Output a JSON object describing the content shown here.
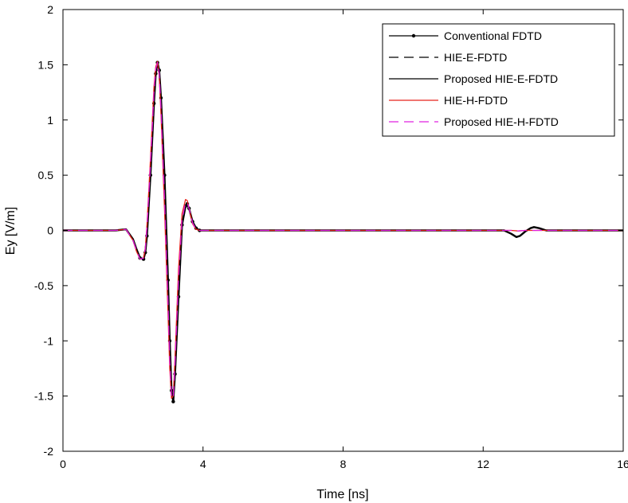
{
  "chart_data": {
    "type": "line",
    "title": "",
    "xlabel": "Time [ns]",
    "ylabel": "Ey [V/m]",
    "xlim": [
      0,
      16
    ],
    "ylim": [
      -2,
      2
    ],
    "xticks": [
      0,
      4,
      8,
      12,
      16
    ],
    "yticks": [
      -2,
      -1.5,
      -1,
      -0.5,
      0,
      0.5,
      1,
      1.5,
      2
    ],
    "grid": false,
    "legend_position": "top-right",
    "series": [
      {
        "name": "Conventional FDTD",
        "color": "#000000",
        "style": "solid-with-dots",
        "x": [
          0,
          1.5,
          1.8,
          2.0,
          2.1,
          2.2,
          2.3,
          2.35,
          2.4,
          2.5,
          2.6,
          2.65,
          2.7,
          2.75,
          2.8,
          2.9,
          3.0,
          3.05,
          3.1,
          3.15,
          3.2,
          3.3,
          3.4,
          3.5,
          3.55,
          3.6,
          3.7,
          3.8,
          3.9,
          4.0,
          8,
          12.4,
          12.6,
          12.8,
          12.95,
          13.05,
          13.2,
          13.35,
          13.45,
          13.6,
          13.8,
          14.2,
          16
        ],
        "y": [
          0,
          0.0,
          0.01,
          -0.08,
          -0.17,
          -0.25,
          -0.26,
          -0.2,
          -0.05,
          0.5,
          1.15,
          1.42,
          1.52,
          1.45,
          1.2,
          0.5,
          -0.45,
          -1.0,
          -1.45,
          -1.55,
          -1.3,
          -0.6,
          0.05,
          0.22,
          0.24,
          0.2,
          0.08,
          0.02,
          0.0,
          0.0,
          0.0,
          0.0,
          0.0,
          -0.03,
          -0.06,
          -0.05,
          -0.01,
          0.02,
          0.03,
          0.02,
          0.0,
          0.0,
          0.0
        ]
      },
      {
        "name": "HIE-E-FDTD",
        "color": "#000000",
        "style": "dashed",
        "x": [
          0,
          1.5,
          1.8,
          2.0,
          2.1,
          2.2,
          2.3,
          2.35,
          2.4,
          2.5,
          2.6,
          2.65,
          2.7,
          2.75,
          2.8,
          2.9,
          3.0,
          3.05,
          3.1,
          3.15,
          3.2,
          3.3,
          3.4,
          3.5,
          3.55,
          3.6,
          3.7,
          3.8,
          3.9,
          4.0,
          8,
          12.4,
          12.6,
          12.8,
          12.95,
          13.05,
          13.2,
          13.35,
          13.45,
          13.6,
          13.8,
          14.2,
          16
        ],
        "y": [
          0,
          0.0,
          0.01,
          -0.08,
          -0.17,
          -0.25,
          -0.26,
          -0.2,
          -0.05,
          0.5,
          1.15,
          1.42,
          1.52,
          1.45,
          1.2,
          0.5,
          -0.45,
          -1.0,
          -1.45,
          -1.55,
          -1.3,
          -0.6,
          0.05,
          0.22,
          0.24,
          0.2,
          0.08,
          0.02,
          0.0,
          0.0,
          0.0,
          0.0,
          0.0,
          -0.03,
          -0.06,
          -0.05,
          -0.01,
          0.02,
          0.03,
          0.02,
          0.0,
          0.0,
          0.0
        ]
      },
      {
        "name": "Proposed HIE-E-FDTD",
        "color": "#000000",
        "style": "solid",
        "x": [
          0,
          1.5,
          1.8,
          2.0,
          2.1,
          2.2,
          2.3,
          2.35,
          2.4,
          2.5,
          2.6,
          2.65,
          2.7,
          2.75,
          2.8,
          2.9,
          3.0,
          3.05,
          3.1,
          3.15,
          3.2,
          3.3,
          3.4,
          3.5,
          3.55,
          3.6,
          3.7,
          3.8,
          3.9,
          4.0,
          8,
          12.4,
          12.6,
          12.8,
          12.95,
          13.05,
          13.2,
          13.35,
          13.45,
          13.6,
          13.8,
          14.2,
          16
        ],
        "y": [
          0,
          0.0,
          0.01,
          -0.08,
          -0.17,
          -0.25,
          -0.26,
          -0.2,
          -0.05,
          0.5,
          1.15,
          1.42,
          1.52,
          1.45,
          1.2,
          0.5,
          -0.45,
          -1.0,
          -1.45,
          -1.55,
          -1.3,
          -0.6,
          0.05,
          0.22,
          0.24,
          0.2,
          0.08,
          0.02,
          0.0,
          0.0,
          0.0,
          0.0,
          0.0,
          -0.03,
          -0.06,
          -0.05,
          -0.01,
          0.02,
          0.03,
          0.02,
          0.0,
          0.0,
          0.0
        ]
      },
      {
        "name": "HIE-H-FDTD",
        "color": "#e8241c",
        "style": "solid",
        "x": [
          0,
          1.5,
          1.8,
          2.0,
          2.1,
          2.2,
          2.3,
          2.35,
          2.4,
          2.5,
          2.6,
          2.65,
          2.7,
          2.75,
          2.8,
          2.9,
          3.0,
          3.05,
          3.1,
          3.15,
          3.2,
          3.3,
          3.4,
          3.5,
          3.55,
          3.6,
          3.7,
          3.8,
          3.9,
          4.0,
          8,
          12.4,
          12.8,
          13.0,
          13.2,
          16
        ],
        "y": [
          0,
          0.0,
          0.01,
          -0.09,
          -0.19,
          -0.26,
          -0.25,
          -0.16,
          0.05,
          0.65,
          1.3,
          1.48,
          1.53,
          1.4,
          1.05,
          0.2,
          -0.75,
          -1.25,
          -1.52,
          -1.5,
          -1.15,
          -0.35,
          0.15,
          0.28,
          0.27,
          0.2,
          0.06,
          0.01,
          0.0,
          0.0,
          0.0,
          0.0,
          0.0,
          -0.005,
          0.0,
          0.0
        ]
      },
      {
        "name": "Proposed HIE-H-FDTD",
        "color": "#e020e0",
        "style": "dashed",
        "x": [
          0,
          1.5,
          1.8,
          2.0,
          2.1,
          2.2,
          2.3,
          2.35,
          2.4,
          2.5,
          2.6,
          2.65,
          2.7,
          2.75,
          2.8,
          2.9,
          3.0,
          3.05,
          3.1,
          3.15,
          3.2,
          3.3,
          3.4,
          3.5,
          3.55,
          3.6,
          3.7,
          3.8,
          3.9,
          4.0,
          8,
          12.4,
          12.8,
          13.0,
          13.2,
          16
        ],
        "y": [
          0,
          0.0,
          0.01,
          -0.09,
          -0.18,
          -0.26,
          -0.25,
          -0.17,
          0.03,
          0.6,
          1.25,
          1.46,
          1.52,
          1.42,
          1.1,
          0.3,
          -0.65,
          -1.18,
          -1.5,
          -1.52,
          -1.2,
          -0.45,
          0.1,
          0.25,
          0.25,
          0.2,
          0.07,
          0.01,
          0.0,
          0.0,
          0.0,
          0.0,
          0.0,
          -0.005,
          0.0,
          0.0
        ]
      }
    ]
  }
}
